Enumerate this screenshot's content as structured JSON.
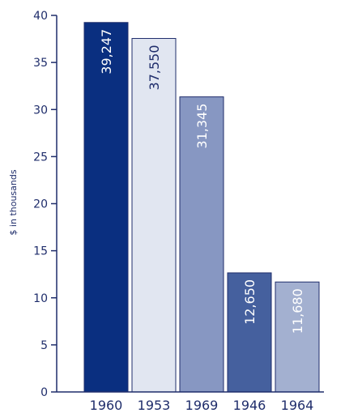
{
  "chart_data": {
    "type": "bar",
    "ylabel": "$ in thousands",
    "ylim": [
      0,
      40
    ],
    "yticks": [
      0,
      5,
      10,
      15,
      20,
      25,
      30,
      35,
      40
    ],
    "grid": false,
    "categories": [
      "1960",
      "1953",
      "1969",
      "1946",
      "1964"
    ],
    "values": [
      39247,
      37550,
      31345,
      12650,
      11680
    ],
    "value_labels": [
      "39,247",
      "37,550",
      "31,345",
      "12,650",
      "11,680"
    ],
    "bar_colors": [
      "#0a2f80",
      "#e1e6f1",
      "#8797c2",
      "#45609e",
      "#a3b0d0"
    ],
    "label_colors": [
      "#ffffff",
      "#1f2d6b",
      "#ffffff",
      "#ffffff",
      "#ffffff"
    ],
    "axis_color": "#1f2d6b"
  }
}
